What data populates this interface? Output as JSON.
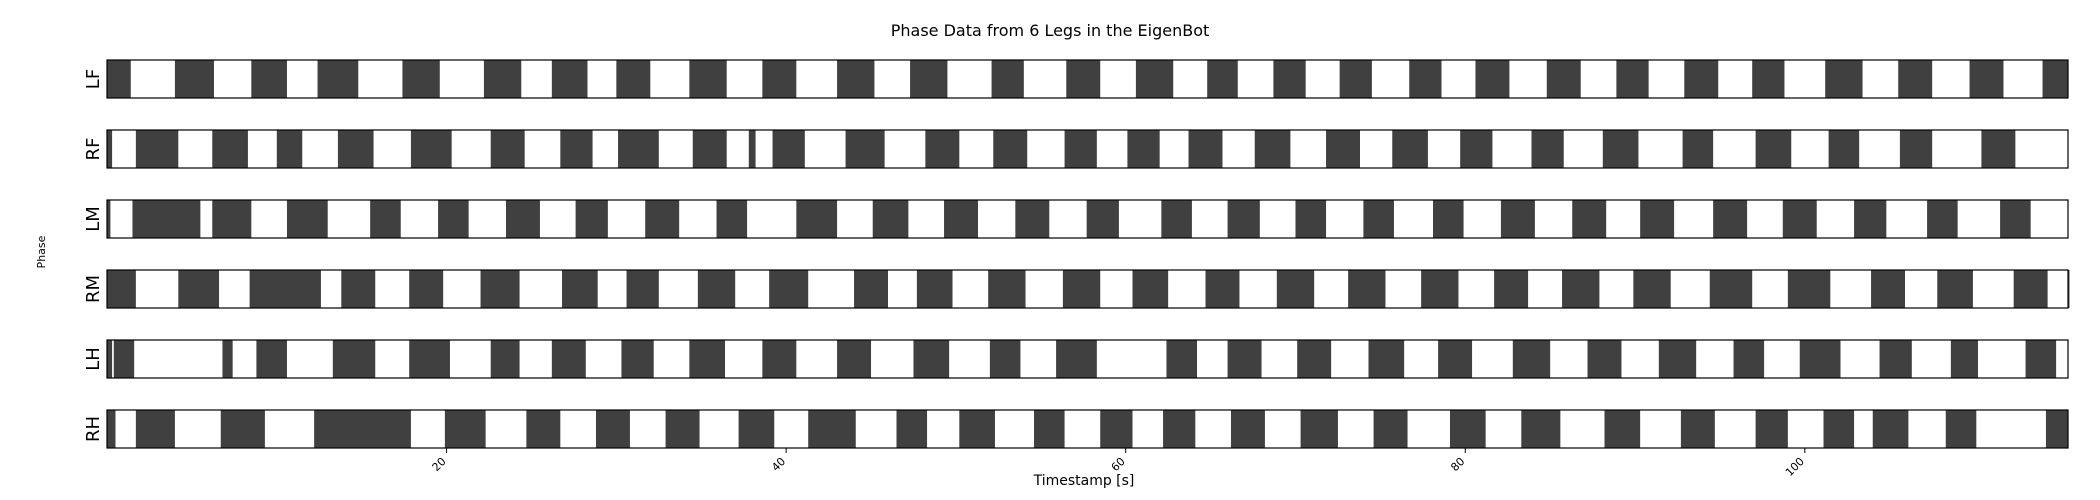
{
  "chart_data": {
    "type": "heatmap",
    "title": "Phase Data from 6 Legs in the EigenBot",
    "xlabel": "Timestamp [s]",
    "ylabel": "Phase",
    "xlim": [
      0,
      115.5
    ],
    "xticks": [
      20,
      40,
      60,
      80,
      100
    ],
    "xtick_labels": [
      "20",
      "40",
      "60",
      "80",
      "100"
    ],
    "phase_colors": {
      "stance": "#404040",
      "swing": "#ffffff"
    },
    "legs": [
      {
        "name": "LF",
        "stance_intervals": [
          [
            0,
            1.4
          ],
          [
            4,
            6.3
          ],
          [
            8.5,
            10.6
          ],
          [
            12.4,
            14.8
          ],
          [
            17.4,
            19.6
          ],
          [
            22.2,
            24.4
          ],
          [
            26.2,
            28.3
          ],
          [
            30,
            32
          ],
          [
            34.3,
            36.5
          ],
          [
            38.6,
            40.6
          ],
          [
            43,
            45.2
          ],
          [
            47.3,
            49.5
          ],
          [
            52.1,
            54
          ],
          [
            56.5,
            58.5
          ],
          [
            60.6,
            62.8
          ],
          [
            64.8,
            66.6
          ],
          [
            68.7,
            70.6
          ],
          [
            72.6,
            74.5
          ],
          [
            76.7,
            78.6
          ],
          [
            80.6,
            82.6
          ],
          [
            84.8,
            86.8
          ],
          [
            88.9,
            90.8
          ],
          [
            92.9,
            94.9
          ],
          [
            96.9,
            98.8
          ],
          [
            101.2,
            103.4
          ],
          [
            105.5,
            107.5
          ],
          [
            109.7,
            111.7
          ],
          [
            114,
            115.5
          ]
        ]
      },
      {
        "name": "RF",
        "stance_intervals": [
          [
            0,
            0.3
          ],
          [
            1.7,
            4.2
          ],
          [
            6.2,
            8.3
          ],
          [
            10,
            11.5
          ],
          [
            13.6,
            15.7
          ],
          [
            17.9,
            20.3
          ],
          [
            22.6,
            24.6
          ],
          [
            26.7,
            28.6
          ],
          [
            30.1,
            32.5
          ],
          [
            34.5,
            36.5
          ],
          [
            37.8,
            38.2
          ],
          [
            39.2,
            41.1
          ],
          [
            43.5,
            45.8
          ],
          [
            48.2,
            50.2
          ],
          [
            52.2,
            54.2
          ],
          [
            56.4,
            58.3
          ],
          [
            60.1,
            62
          ],
          [
            63.7,
            65.7
          ],
          [
            67.6,
            69.7
          ],
          [
            71.8,
            73.8
          ],
          [
            75.7,
            77.8
          ],
          [
            79.7,
            81.6
          ],
          [
            83.9,
            85.8
          ],
          [
            88.1,
            90.2
          ],
          [
            92.8,
            94.6
          ],
          [
            97.1,
            99.2
          ],
          [
            101.4,
            103.2
          ],
          [
            105.6,
            107.5
          ],
          [
            110.4,
            112.4
          ]
        ]
      },
      {
        "name": "LM",
        "stance_intervals": [
          [
            0,
            0.2
          ],
          [
            1.5,
            5.5
          ],
          [
            6.2,
            8.5
          ],
          [
            10.6,
            13
          ],
          [
            15.5,
            17.3
          ],
          [
            19.5,
            21.3
          ],
          [
            23.5,
            25.5
          ],
          [
            27.6,
            29.5
          ],
          [
            31.7,
            33.7
          ],
          [
            35.9,
            37.7
          ],
          [
            40.6,
            43
          ],
          [
            45.1,
            47.2
          ],
          [
            49.3,
            51.3
          ],
          [
            53.5,
            55.5
          ],
          [
            57.7,
            59.6
          ],
          [
            62.1,
            63.9
          ],
          [
            66,
            67.9
          ],
          [
            70,
            71.8
          ],
          [
            74,
            75.8
          ],
          [
            78.1,
            79.9
          ],
          [
            82.1,
            84.1
          ],
          [
            86.3,
            88.3
          ],
          [
            90.3,
            92.3
          ],
          [
            94.6,
            96.6
          ],
          [
            98.7,
            100.7
          ],
          [
            102.9,
            104.8
          ],
          [
            107.2,
            109
          ],
          [
            111.5,
            113.3
          ]
        ]
      },
      {
        "name": "RM",
        "stance_intervals": [
          [
            0,
            1.7
          ],
          [
            4.2,
            6.6
          ],
          [
            8.4,
            12.6
          ],
          [
            13.8,
            15.8
          ],
          [
            17.8,
            19.8
          ],
          [
            22,
            24.3
          ],
          [
            26.8,
            28.9
          ],
          [
            30.6,
            32.5
          ],
          [
            34.8,
            37
          ],
          [
            39,
            41.3
          ],
          [
            44,
            46
          ],
          [
            47.7,
            49.8
          ],
          [
            51.9,
            54.1
          ],
          [
            56.3,
            58.5
          ],
          [
            60.4,
            62.5
          ],
          [
            64.7,
            66.7
          ],
          [
            68.9,
            71.1
          ],
          [
            73.1,
            75.3
          ],
          [
            77.4,
            79.6
          ],
          [
            81.7,
            83.7
          ],
          [
            85.7,
            87.9
          ],
          [
            89.9,
            92.1
          ],
          [
            94.4,
            96.9
          ],
          [
            99,
            101.5
          ],
          [
            103.9,
            105.9
          ],
          [
            107.8,
            109.9
          ],
          [
            112.3,
            114.3
          ],
          [
            115.5,
            115.5
          ]
        ]
      },
      {
        "name": "LH",
        "stance_intervals": [
          [
            0,
            0.3
          ],
          [
            0.4,
            1.6
          ],
          [
            6.8,
            7.4
          ],
          [
            8.8,
            10.6
          ],
          [
            13.3,
            15.8
          ],
          [
            17.8,
            20.2
          ],
          [
            22.6,
            24.3
          ],
          [
            26.2,
            28.2
          ],
          [
            30.3,
            32.2
          ],
          [
            34.3,
            36.4
          ],
          [
            38.6,
            40.6
          ],
          [
            43,
            45
          ],
          [
            47.5,
            49.6
          ],
          [
            52,
            53.8
          ],
          [
            55.9,
            58.3
          ],
          [
            62.4,
            64.2
          ],
          [
            66,
            68
          ],
          [
            70.1,
            72.1
          ],
          [
            74.3,
            76.4
          ],
          [
            78.4,
            80.4
          ],
          [
            82.8,
            85
          ],
          [
            87.2,
            89.2
          ],
          [
            91.4,
            93.6
          ],
          [
            95.8,
            97.6
          ],
          [
            99.7,
            102.1
          ],
          [
            104.4,
            106.3
          ],
          [
            108.6,
            110.2
          ],
          [
            113,
            114.8
          ]
        ]
      },
      {
        "name": "RH",
        "stance_intervals": [
          [
            0,
            0.5
          ],
          [
            1.7,
            4
          ],
          [
            6.7,
            9.3
          ],
          [
            12.2,
            17.9
          ],
          [
            19.9,
            22.3
          ],
          [
            24.7,
            26.7
          ],
          [
            28.8,
            30.8
          ],
          [
            32.9,
            34.9
          ],
          [
            37.2,
            39.3
          ],
          [
            41.3,
            44.1
          ],
          [
            46.5,
            48.3
          ],
          [
            50.2,
            52.3
          ],
          [
            54.6,
            56.4
          ],
          [
            58.5,
            60.4
          ],
          [
            62.2,
            64.1
          ],
          [
            66.2,
            68.2
          ],
          [
            70.3,
            72.5
          ],
          [
            74.6,
            76.6
          ],
          [
            79.1,
            81.2
          ],
          [
            83.3,
            85.6
          ],
          [
            88.2,
            90.3
          ],
          [
            92.7,
            94.7
          ],
          [
            97.1,
            99
          ],
          [
            101.1,
            102.9
          ],
          [
            104,
            106.1
          ],
          [
            108.3,
            110.1
          ],
          [
            114.2,
            115.5
          ]
        ]
      }
    ]
  }
}
